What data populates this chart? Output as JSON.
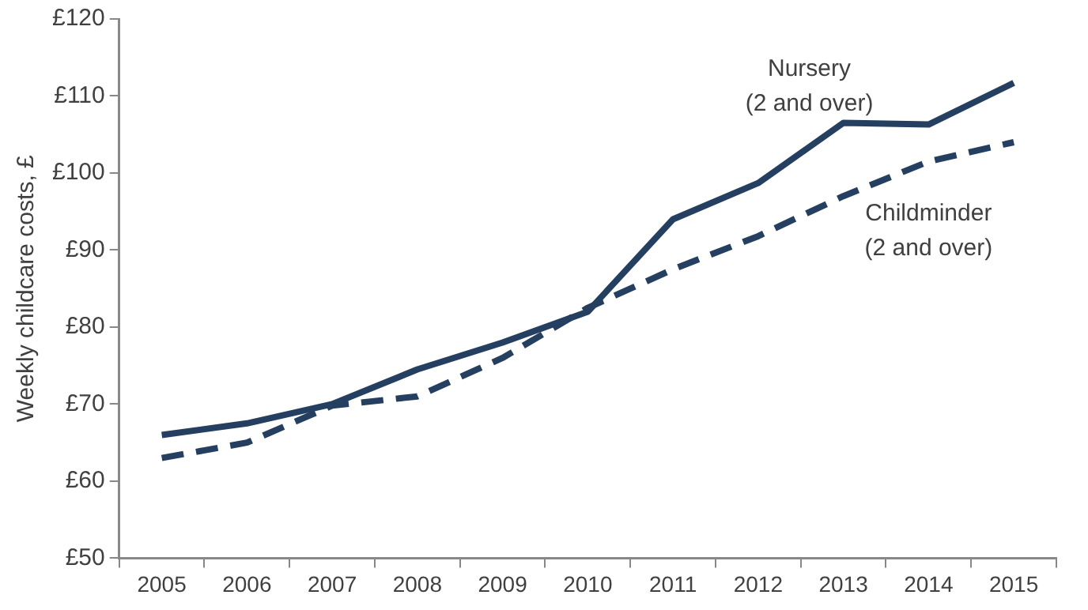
{
  "chart_data": {
    "type": "line",
    "ylabel": "Weekly childcare costs, £",
    "categories": [
      "2005",
      "2006",
      "2007",
      "2008",
      "2009",
      "2010",
      "2011",
      "2012",
      "2013",
      "2014",
      "2015"
    ],
    "series": [
      {
        "name": "Nursery\n(2 and over)",
        "color": "#243f60",
        "line_style": "solid",
        "values": [
          66,
          67.5,
          70,
          74.5,
          78,
          82,
          94,
          98.7,
          106.5,
          106.3,
          111.7
        ]
      },
      {
        "name": "Childminder\n(2 and over)",
        "color": "#243f60",
        "line_style": "dashed",
        "values": [
          63,
          65,
          69.8,
          71,
          76,
          82.5,
          87.5,
          91.8,
          97,
          101.5,
          104
        ]
      }
    ],
    "ylim": [
      50,
      120
    ],
    "yticks": [
      {
        "value": 50,
        "label": "£50"
      },
      {
        "value": 60,
        "label": "£60"
      },
      {
        "value": 70,
        "label": "£70"
      },
      {
        "value": 80,
        "label": "£80"
      },
      {
        "value": 90,
        "label": "£90"
      },
      {
        "value": 100,
        "label": "£100"
      },
      {
        "value": 110,
        "label": "£110"
      },
      {
        "value": 120,
        "label": "£120"
      }
    ],
    "grid": false,
    "legend": false,
    "marker": "none"
  }
}
